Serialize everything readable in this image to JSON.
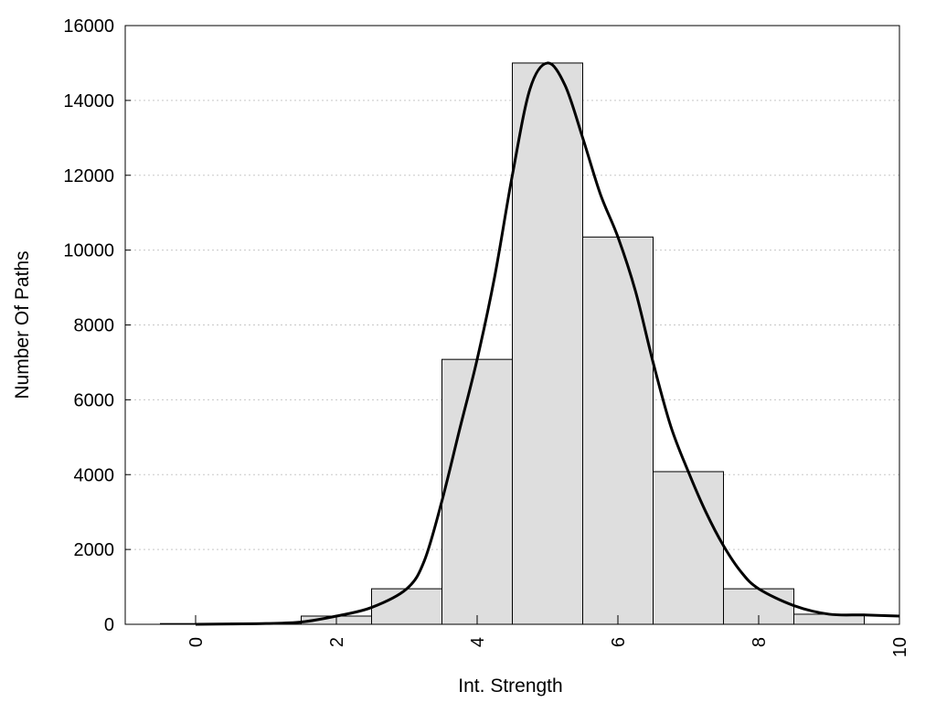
{
  "chart_data": {
    "type": "bar",
    "title": "",
    "xlabel": "Int. Strength",
    "ylabel": "Number Of Paths",
    "xlim": [
      -1,
      10
    ],
    "ylim": [
      0,
      16000
    ],
    "x_ticks": [
      0,
      2,
      4,
      6,
      8,
      10
    ],
    "y_ticks": [
      0,
      2000,
      4000,
      6000,
      8000,
      10000,
      12000,
      14000,
      16000
    ],
    "grid": "horizontal dotted",
    "legend": "none",
    "bar_width": 1,
    "bars": [
      {
        "x": 0,
        "value": 20
      },
      {
        "x": 1,
        "value": 30
      },
      {
        "x": 2,
        "value": 220
      },
      {
        "x": 3,
        "value": 950
      },
      {
        "x": 4,
        "value": 7080
      },
      {
        "x": 5,
        "value": 15000
      },
      {
        "x": 6,
        "value": 10350
      },
      {
        "x": 7,
        "value": 4080
      },
      {
        "x": 8,
        "value": 950
      },
      {
        "x": 9,
        "value": 270
      },
      {
        "x": 10,
        "value": 0
      }
    ],
    "fit_curve": [
      {
        "x": 0,
        "y": 0
      },
      {
        "x": 0.5,
        "y": 10
      },
      {
        "x": 1,
        "y": 20
      },
      {
        "x": 1.5,
        "y": 60
      },
      {
        "x": 2,
        "y": 220
      },
      {
        "x": 2.5,
        "y": 450
      },
      {
        "x": 3,
        "y": 950
      },
      {
        "x": 3.25,
        "y": 1700
      },
      {
        "x": 3.5,
        "y": 3300
      },
      {
        "x": 3.75,
        "y": 5200
      },
      {
        "x": 4,
        "y": 7080
      },
      {
        "x": 4.25,
        "y": 9300
      },
      {
        "x": 4.5,
        "y": 12000
      },
      {
        "x": 4.75,
        "y": 14300
      },
      {
        "x": 5,
        "y": 15000
      },
      {
        "x": 5.25,
        "y": 14400
      },
      {
        "x": 5.5,
        "y": 13000
      },
      {
        "x": 5.75,
        "y": 11500
      },
      {
        "x": 6,
        "y": 10350
      },
      {
        "x": 6.25,
        "y": 8900
      },
      {
        "x": 6.5,
        "y": 7000
      },
      {
        "x": 6.75,
        "y": 5300
      },
      {
        "x": 7,
        "y": 4080
      },
      {
        "x": 7.25,
        "y": 3000
      },
      {
        "x": 7.5,
        "y": 2100
      },
      {
        "x": 7.75,
        "y": 1400
      },
      {
        "x": 8,
        "y": 950
      },
      {
        "x": 8.5,
        "y": 500
      },
      {
        "x": 9,
        "y": 270
      },
      {
        "x": 9.5,
        "y": 250
      },
      {
        "x": 10,
        "y": 220
      }
    ],
    "colors": {
      "bar_fill": "#dedede",
      "bar_stroke": "#000000",
      "curve": "#000000",
      "grid": "#c8c8c8"
    }
  }
}
